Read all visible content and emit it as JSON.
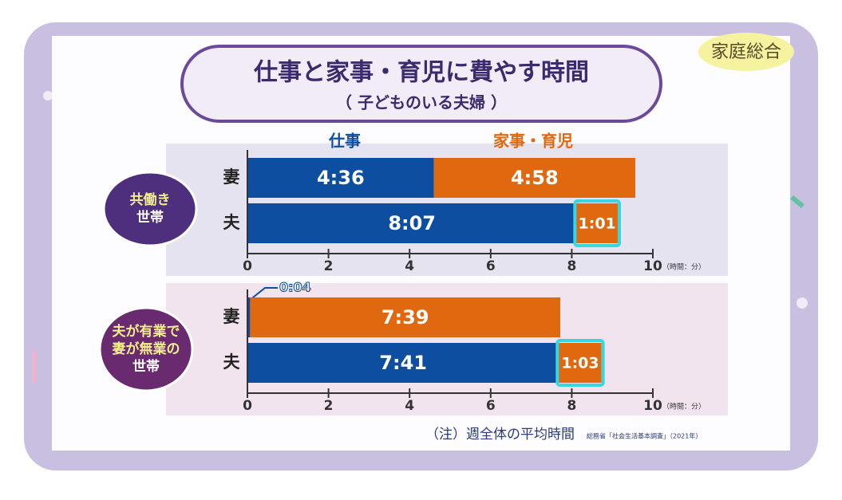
{
  "title": "仕事と家事・育児に費やす時間",
  "subtitle": "（ 子どものいる夫婦 ）",
  "logo": "家庭総合",
  "note": "（注）週全体の平均時間",
  "source": "総務省「社会生活基本調査」（2021年）",
  "chart_data": [
    {
      "type": "bar",
      "orientation": "horizontal",
      "stacked": true,
      "group_label": [
        "共働き",
        "世帯"
      ],
      "categories": [
        "妻",
        "夫"
      ],
      "series": [
        {
          "name": "仕事",
          "color": "#0d4ea0",
          "values": [
            4.6,
            8.1167
          ],
          "value_labels": [
            "4:36",
            "8:07"
          ]
        },
        {
          "name": "家事・育児",
          "color": "#e0680f",
          "values": [
            4.9667,
            1.0167
          ],
          "value_labels": [
            "4:58",
            "1:01"
          ]
        }
      ],
      "xlim": [
        0,
        10
      ],
      "xticks": [
        0,
        2,
        4,
        6,
        8,
        10
      ],
      "x_unit": "（時間：分）"
    },
    {
      "type": "bar",
      "orientation": "horizontal",
      "stacked": true,
      "group_label": [
        "夫が有業で",
        "妻が無業の",
        "世帯"
      ],
      "categories": [
        "妻",
        "夫"
      ],
      "series": [
        {
          "color": "#0d4ea0",
          "values": [
            0.0667,
            7.6833
          ],
          "value_labels": [
            "0:04",
            "7:41"
          ]
        },
        {
          "color": "#e0680f",
          "values": [
            7.65,
            1.05
          ],
          "value_labels": [
            "7:39",
            "1:03"
          ]
        }
      ],
      "xlim": [
        0,
        10
      ],
      "xticks": [
        0,
        2,
        4,
        6,
        8,
        10
      ],
      "x_unit": "（時間：分）"
    }
  ]
}
